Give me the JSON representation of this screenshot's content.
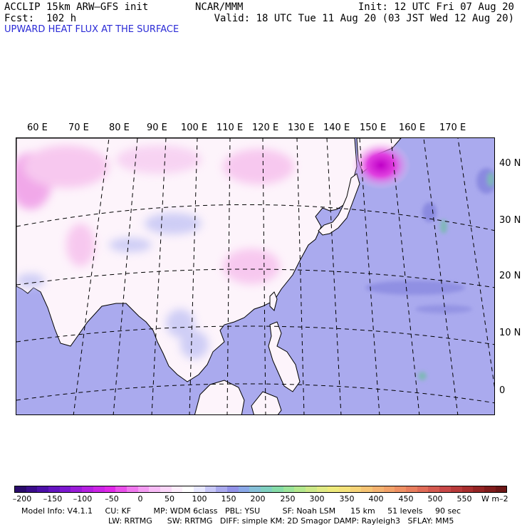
{
  "header": {
    "model_title": "ACCLIP 15km ARW–GFS init",
    "forecast": "Fcst:  102 h",
    "center": "NCAR/MMM",
    "init": "Init: 12 UTC Fri 07 Aug 20",
    "valid": "Valid: 18 UTC Tue 11 Aug 20 (03 JST Wed 12 Aug 20)",
    "field": "UPWARD HEAT FLUX AT THE SURFACE"
  },
  "map": {
    "lon_labels": [
      "60 E",
      "70 E",
      "80 E",
      "90 E",
      "100 E",
      "110 E",
      "120 E",
      "130 E",
      "140 E",
      "150 E",
      "160 E",
      "170 E"
    ],
    "lat_labels": [
      "40 N",
      "30 N",
      "20 N",
      "10 N",
      "0"
    ],
    "colors": {
      "land_base": "#fdf4fb",
      "land_pink": "#f7c4ee",
      "land_bluish": "#c9c9f5",
      "ocean": "#aaaaee",
      "ocean_dark": "#8a8ae0",
      "ocean_teal": "#7fb8b8",
      "hotspot": "#e040e0",
      "hotspot_core": "#c000c8"
    }
  },
  "colorbar": {
    "colors": [
      "#2a0b6b",
      "#3a0d8a",
      "#4c10a8",
      "#6414c0",
      "#7c18d0",
      "#9a1cd8",
      "#b420e0",
      "#cc24e6",
      "#e028e8",
      "#ea50ea",
      "#f078ee",
      "#f49cf2",
      "#f8bcf6",
      "#fbd6f9",
      "#fdeefc",
      "#ffffff",
      "#e8e8ff",
      "#c8c8f8",
      "#aaaaee",
      "#9292e8",
      "#8aa8e8",
      "#86c0d8",
      "#80d0c0",
      "#86dca8",
      "#9ce49a",
      "#b4e88e",
      "#cce888",
      "#e0ea84",
      "#eeea7c",
      "#f4e27a",
      "#f6d478",
      "#f6c474",
      "#f4b270",
      "#f2a26a",
      "#ee9064",
      "#e87e5e",
      "#e06c58",
      "#d45a50",
      "#c84848",
      "#b83a3a",
      "#a82e2e",
      "#942424",
      "#801c1c",
      "#6c1616"
    ],
    "labels": [
      "–200",
      "–150",
      "–100",
      "–50",
      "0",
      "50",
      "100",
      "150",
      "200",
      "250",
      "300",
      "350",
      "400",
      "450",
      "500",
      "550"
    ],
    "unit": "W m–2"
  },
  "model_info": {
    "line1": "Model Info: V4.1.1     CU: KF         MP: WDM 6class   PBL: YSU         SF: Noah LSM      15 km     51 levels     90 sec",
    "line2": "LW: RRTMG      SW: RRTMG   DIFF: simple KM: 2D Smagor DAMP: Rayleigh3   SFLAY: MM5"
  }
}
